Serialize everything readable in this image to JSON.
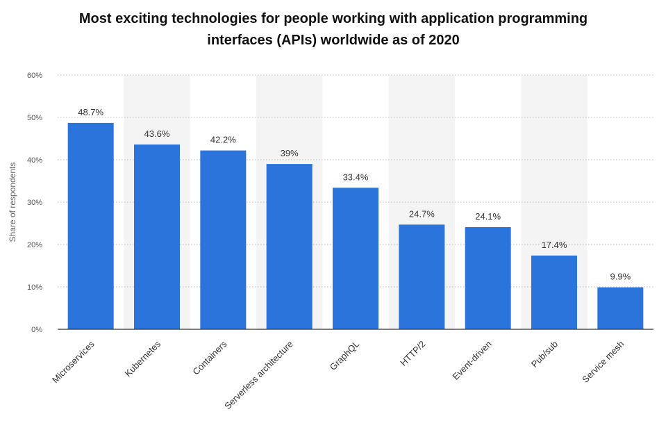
{
  "title_line1": "Most exciting technologies for people working with application programming",
  "title_line2": "interfaces (APIs) worldwide as of 2020",
  "chart_data": {
    "type": "bar",
    "title": "Most exciting technologies for people working with application programming interfaces (APIs) worldwide as of 2020",
    "xlabel": "",
    "ylabel": "Share of respondents",
    "ylim": [
      0,
      60
    ],
    "yticks": [
      0,
      10,
      20,
      30,
      40,
      50,
      60
    ],
    "ytick_labels": [
      "0%",
      "10%",
      "20%",
      "30%",
      "40%",
      "50%",
      "60%"
    ],
    "grid": true,
    "categories": [
      "Microservices",
      "Kubernetes",
      "Containers",
      "Serverless architecture",
      "GraphQL",
      "HTTP/2",
      "Event-driven",
      "Pub/sub",
      "Service mesh"
    ],
    "values": [
      48.7,
      43.6,
      42.2,
      39,
      33.4,
      24.7,
      24.1,
      17.4,
      9.9
    ],
    "value_labels": [
      "48.7%",
      "43.6%",
      "42.2%",
      "39%",
      "33.4%",
      "24.7%",
      "24.1%",
      "17.4%",
      "9.9%"
    ],
    "bar_color": "#2a74dc",
    "band_color": "#f4f4f4",
    "grid_color": "#bbbbbb",
    "axis_color": "#333333"
  }
}
